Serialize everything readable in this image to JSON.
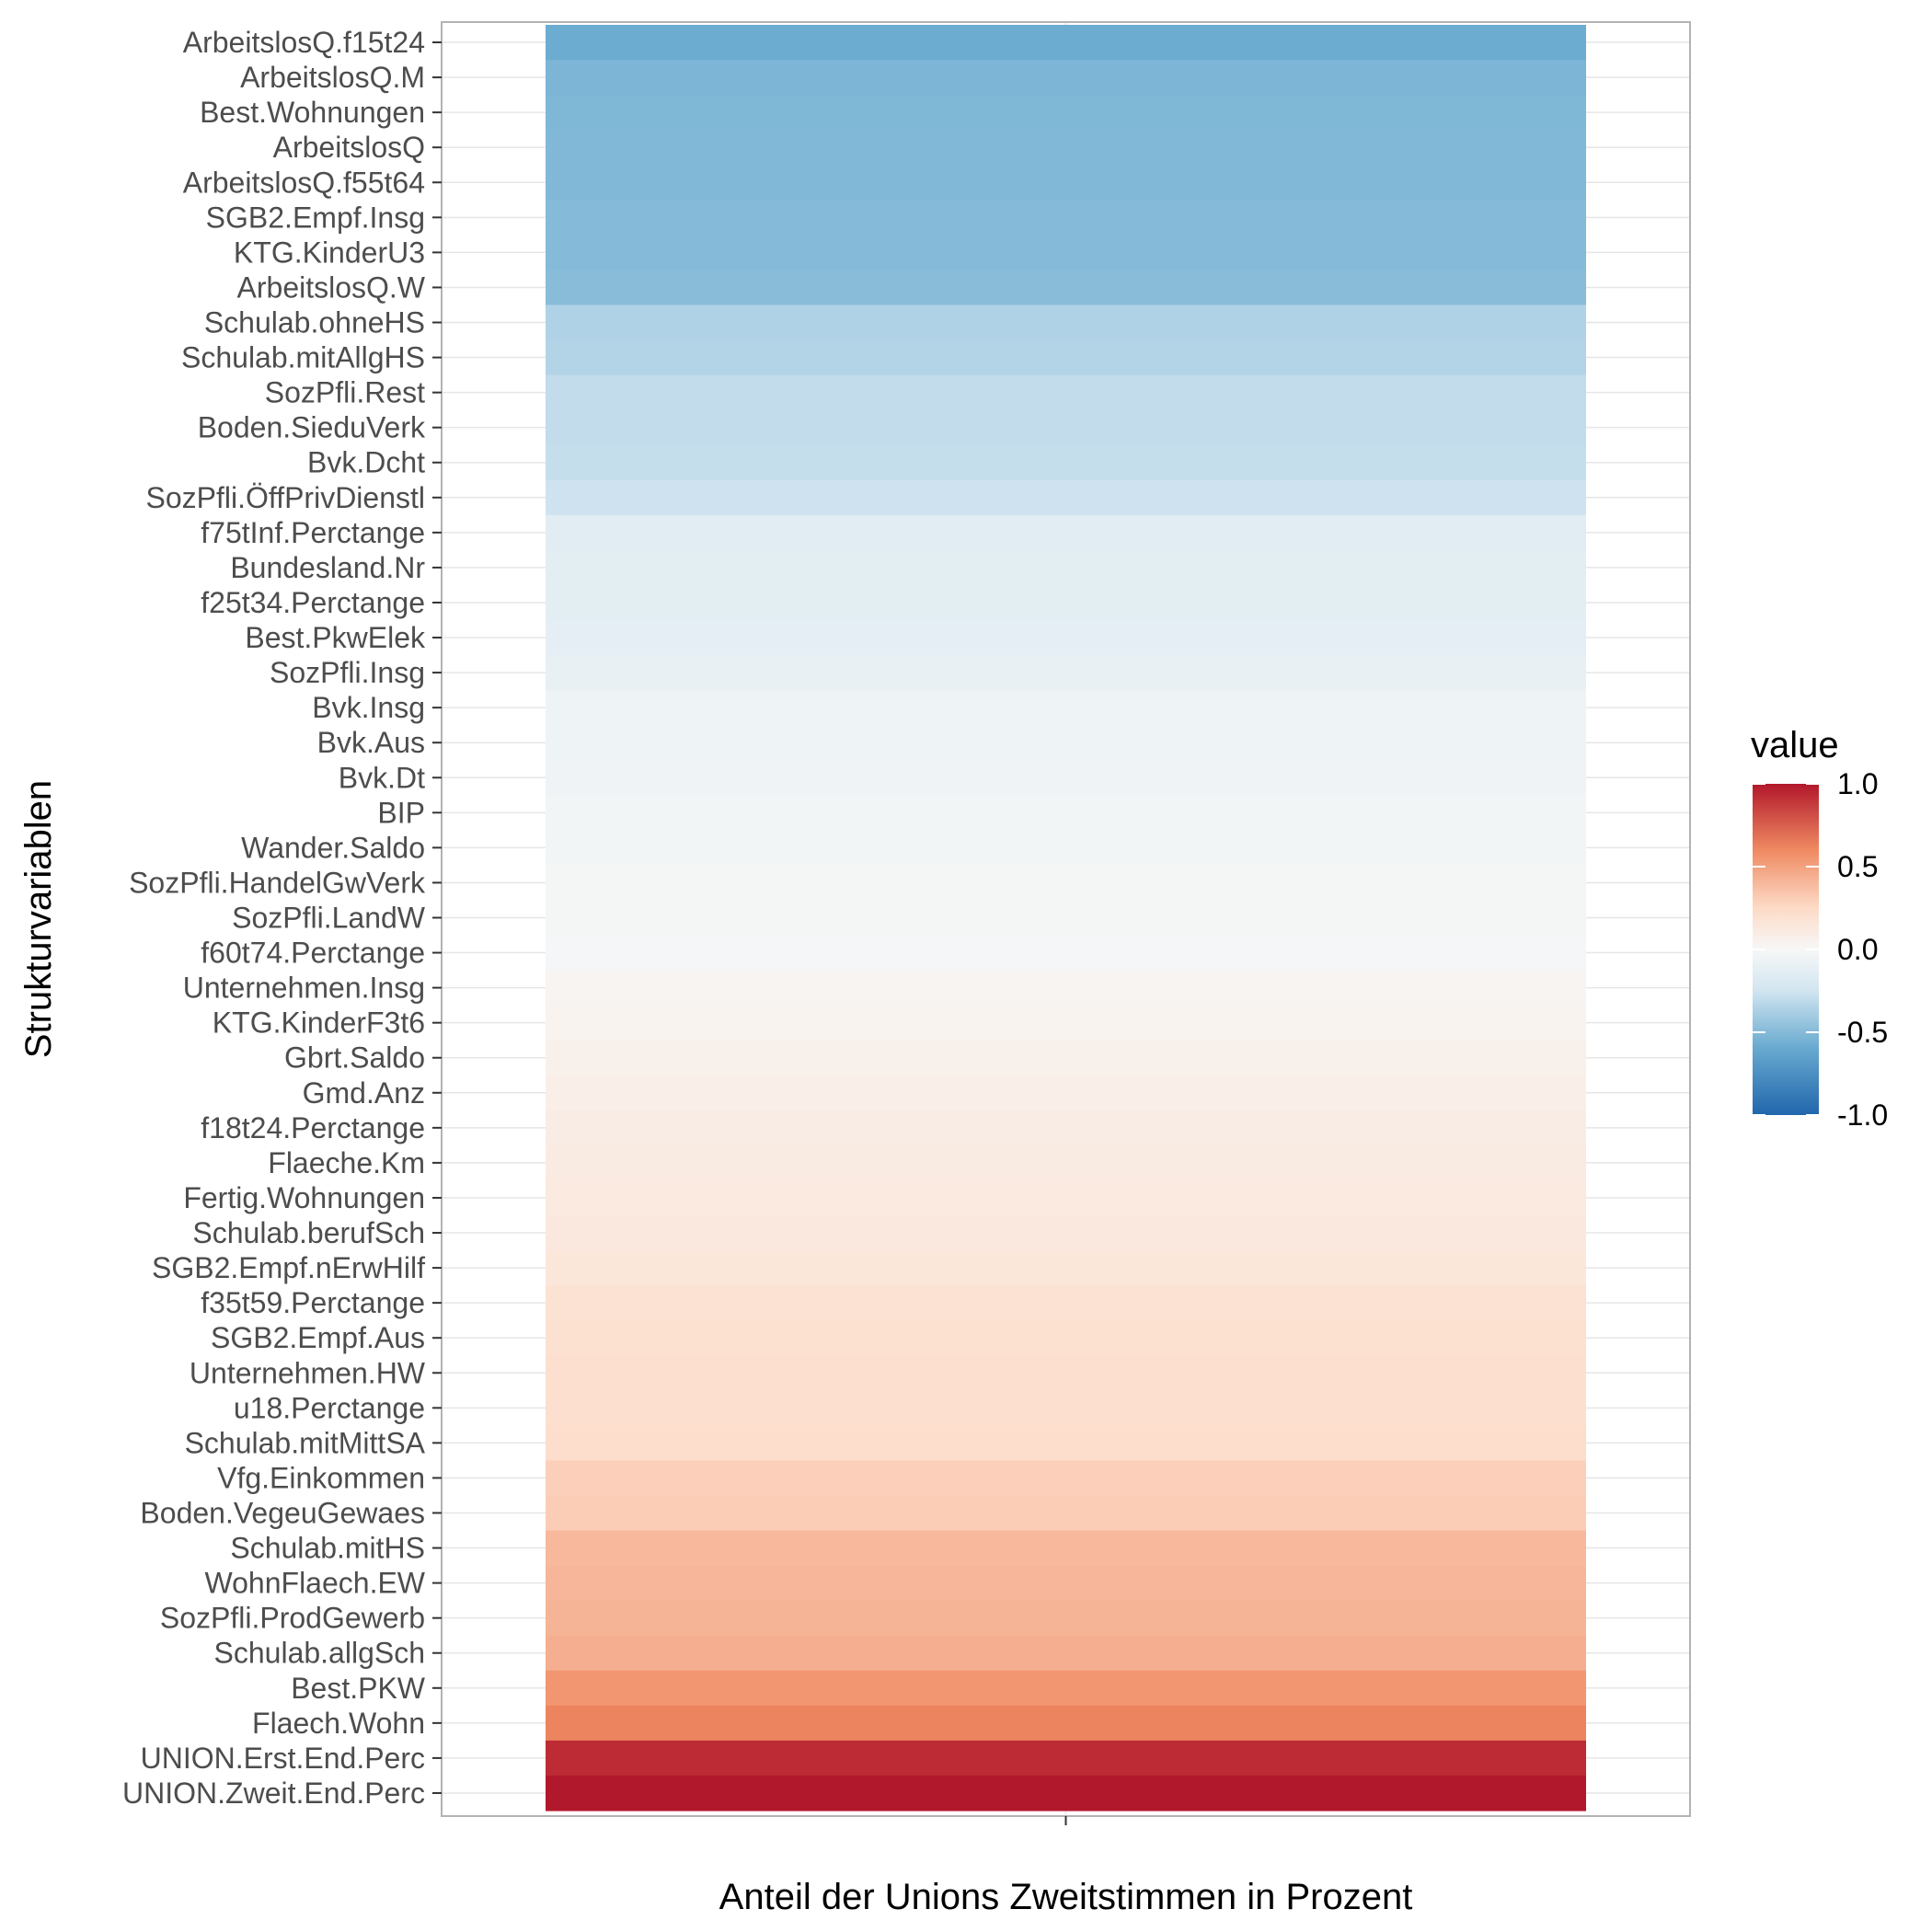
{
  "chart_data": {
    "type": "heatmap",
    "xlabel": "Anteil der Unions Zweitstimmen in Prozent",
    "ylabel": "Strukturvariablen",
    "legend": {
      "title": "value",
      "position": "right",
      "limits": [
        -1.0,
        1.0
      ],
      "ticks": [
        "1.0",
        "0.5",
        "0.0",
        "-0.5",
        "-1.0"
      ],
      "tick_values": [
        1.0,
        0.5,
        0.0,
        -0.5,
        -1.0
      ],
      "colors": {
        "low": "#2166ac",
        "low_mid": "#67a9cf",
        "low_light": "#d1e5f0",
        "mid": "#f7f7f7",
        "high_light": "#fddbc7",
        "high_mid": "#ef8a62",
        "high": "#b2182b"
      }
    },
    "grid": true,
    "rows": [
      {
        "label": "ArbeitslosQ.f15t24",
        "value": -0.58
      },
      {
        "label": "ArbeitslosQ.M",
        "value": -0.53
      },
      {
        "label": "Best.Wohnungen",
        "value": -0.52
      },
      {
        "label": "ArbeitslosQ",
        "value": -0.51
      },
      {
        "label": "ArbeitslosQ.f55t64",
        "value": -0.51
      },
      {
        "label": "SGB2.Empf.Insg",
        "value": -0.5
      },
      {
        "label": "KTG.KinderU3",
        "value": -0.5
      },
      {
        "label": "ArbeitslosQ.W",
        "value": -0.49
      },
      {
        "label": "Schulab.ohneHS",
        "value": -0.36
      },
      {
        "label": "Schulab.mitAllgHS",
        "value": -0.35
      },
      {
        "label": "SozPfli.Rest",
        "value": -0.3
      },
      {
        "label": "Boden.SieduVerk",
        "value": -0.3
      },
      {
        "label": "Bvk.Dcht",
        "value": -0.29
      },
      {
        "label": "SozPfli.ÖffPrivDienstl",
        "value": -0.26
      },
      {
        "label": "f75tInf.Perctange",
        "value": -0.14
      },
      {
        "label": "Bundesland.Nr",
        "value": -0.13
      },
      {
        "label": "f25t34.Perctange",
        "value": -0.13
      },
      {
        "label": "Best.PkwElek",
        "value": -0.12
      },
      {
        "label": "SozPfli.Insg",
        "value": -0.1
      },
      {
        "label": "Bvk.Insg",
        "value": -0.06
      },
      {
        "label": "Bvk.Aus",
        "value": -0.06
      },
      {
        "label": "Bvk.Dt",
        "value": -0.05
      },
      {
        "label": "BIP",
        "value": -0.03
      },
      {
        "label": "Wander.Saldo",
        "value": -0.03
      },
      {
        "label": "SozPfli.HandelGwVerk",
        "value": -0.02
      },
      {
        "label": "SozPfli.LandW",
        "value": -0.02
      },
      {
        "label": "f60t74.Perctange",
        "value": -0.01
      },
      {
        "label": "Unternehmen.Insg",
        "value": 0.03
      },
      {
        "label": "KTG.KinderF3t6",
        "value": 0.04
      },
      {
        "label": "Gbrt.Saldo",
        "value": 0.06
      },
      {
        "label": "Gmd.Anz",
        "value": 0.08
      },
      {
        "label": "f18t24.Perctange",
        "value": 0.1
      },
      {
        "label": "Flaeche.Km",
        "value": 0.11
      },
      {
        "label": "Fertig.Wohnungen",
        "value": 0.12
      },
      {
        "label": "Schulab.berufSch",
        "value": 0.13
      },
      {
        "label": "SGB2.Empf.nErwHilf",
        "value": 0.15
      },
      {
        "label": "f35t59.Perctange",
        "value": 0.19
      },
      {
        "label": "SGB2.Empf.Aus",
        "value": 0.2
      },
      {
        "label": "Unternehmen.HW",
        "value": 0.21
      },
      {
        "label": "u18.Perctange",
        "value": 0.21
      },
      {
        "label": "Schulab.mitMittSA",
        "value": 0.23
      },
      {
        "label": "Vfg.Einkommen",
        "value": 0.3
      },
      {
        "label": "Boden.VegeuGewaes",
        "value": 0.31
      },
      {
        "label": "Schulab.mitHS",
        "value": 0.4
      },
      {
        "label": "WohnFlaech.EW",
        "value": 0.41
      },
      {
        "label": "SozPfli.ProdGewerb",
        "value": 0.42
      },
      {
        "label": "Schulab.allgSch",
        "value": 0.44
      },
      {
        "label": "Best.PKW",
        "value": 0.55
      },
      {
        "label": "Flaech.Wohn",
        "value": 0.62
      },
      {
        "label": "UNION.Erst.End.Perc",
        "value": 0.93
      },
      {
        "label": "UNION.Zweit.End.Perc",
        "value": 1.0
      }
    ]
  }
}
